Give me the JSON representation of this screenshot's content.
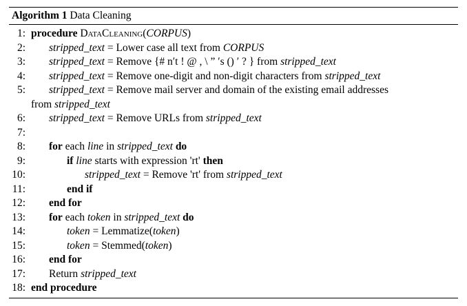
{
  "caption": {
    "label": "Algorithm 1",
    "title": "Data Cleaning"
  },
  "lines": [
    {
      "num": "1:",
      "parts": {
        "kw": "procedure",
        "name": "DataCleaning",
        "open": "(",
        "arg": "CORPUS",
        "close": ")"
      }
    },
    {
      "num": "2:",
      "var": "stripped_text",
      "eq": "=",
      "text": "Lower case all text from",
      "tail_var": "CORPUS"
    },
    {
      "num": "3:",
      "var": "stripped_text",
      "eq": "=",
      "text": "Remove {# n′t ! @  , \\ ” ′s () ′ ? } from",
      "tail_var": "stripped_text"
    },
    {
      "num": "4:",
      "var": "stripped_text",
      "eq": "=",
      "text": "Remove one-digit and non-digit characters from",
      "tail_var": "stripped_text"
    },
    {
      "num": "5:",
      "var": "stripped_text",
      "eq": "=",
      "text": "Remove mail server and domain of the existing email addresses",
      "cont_text": "from",
      "cont_var": "stripped_text"
    },
    {
      "num": "6:",
      "var": "stripped_text",
      "eq": "=",
      "text": "Remove URLs from",
      "tail_var": "stripped_text"
    },
    {
      "num": "7:"
    },
    {
      "num": "8:",
      "kw1": "for",
      "text1": "each",
      "v1": "line",
      "text2": "in",
      "v2": "stripped_text",
      "kw2": "do"
    },
    {
      "num": "9:",
      "kw1": "if",
      "v1": "line",
      "text1": "starts with expression 'rt'",
      "kw2": "then"
    },
    {
      "num": "10:",
      "var": "stripped_text",
      "eq": "=",
      "text": "Remove 'rt' from",
      "tail_var": "stripped_text"
    },
    {
      "num": "11:",
      "kw": "end if"
    },
    {
      "num": "12:",
      "kw": "end for"
    },
    {
      "num": "13:",
      "kw1": "for",
      "text1": "each",
      "v1": "token",
      "text2": "in",
      "v2": "stripped_text",
      "kw2": "do"
    },
    {
      "num": "14:",
      "var": "token",
      "eq": "=",
      "fn": "Lemmatize(",
      "arg": "token",
      "close": ")"
    },
    {
      "num": "15:",
      "var": "token",
      "eq": "=",
      "fn": "Stemmed(",
      "arg": "token",
      "close": ")"
    },
    {
      "num": "16:",
      "kw": "end for"
    },
    {
      "num": "17:",
      "text": "Return",
      "var": "stripped_text"
    },
    {
      "num": "18:",
      "kw": "end procedure"
    }
  ]
}
